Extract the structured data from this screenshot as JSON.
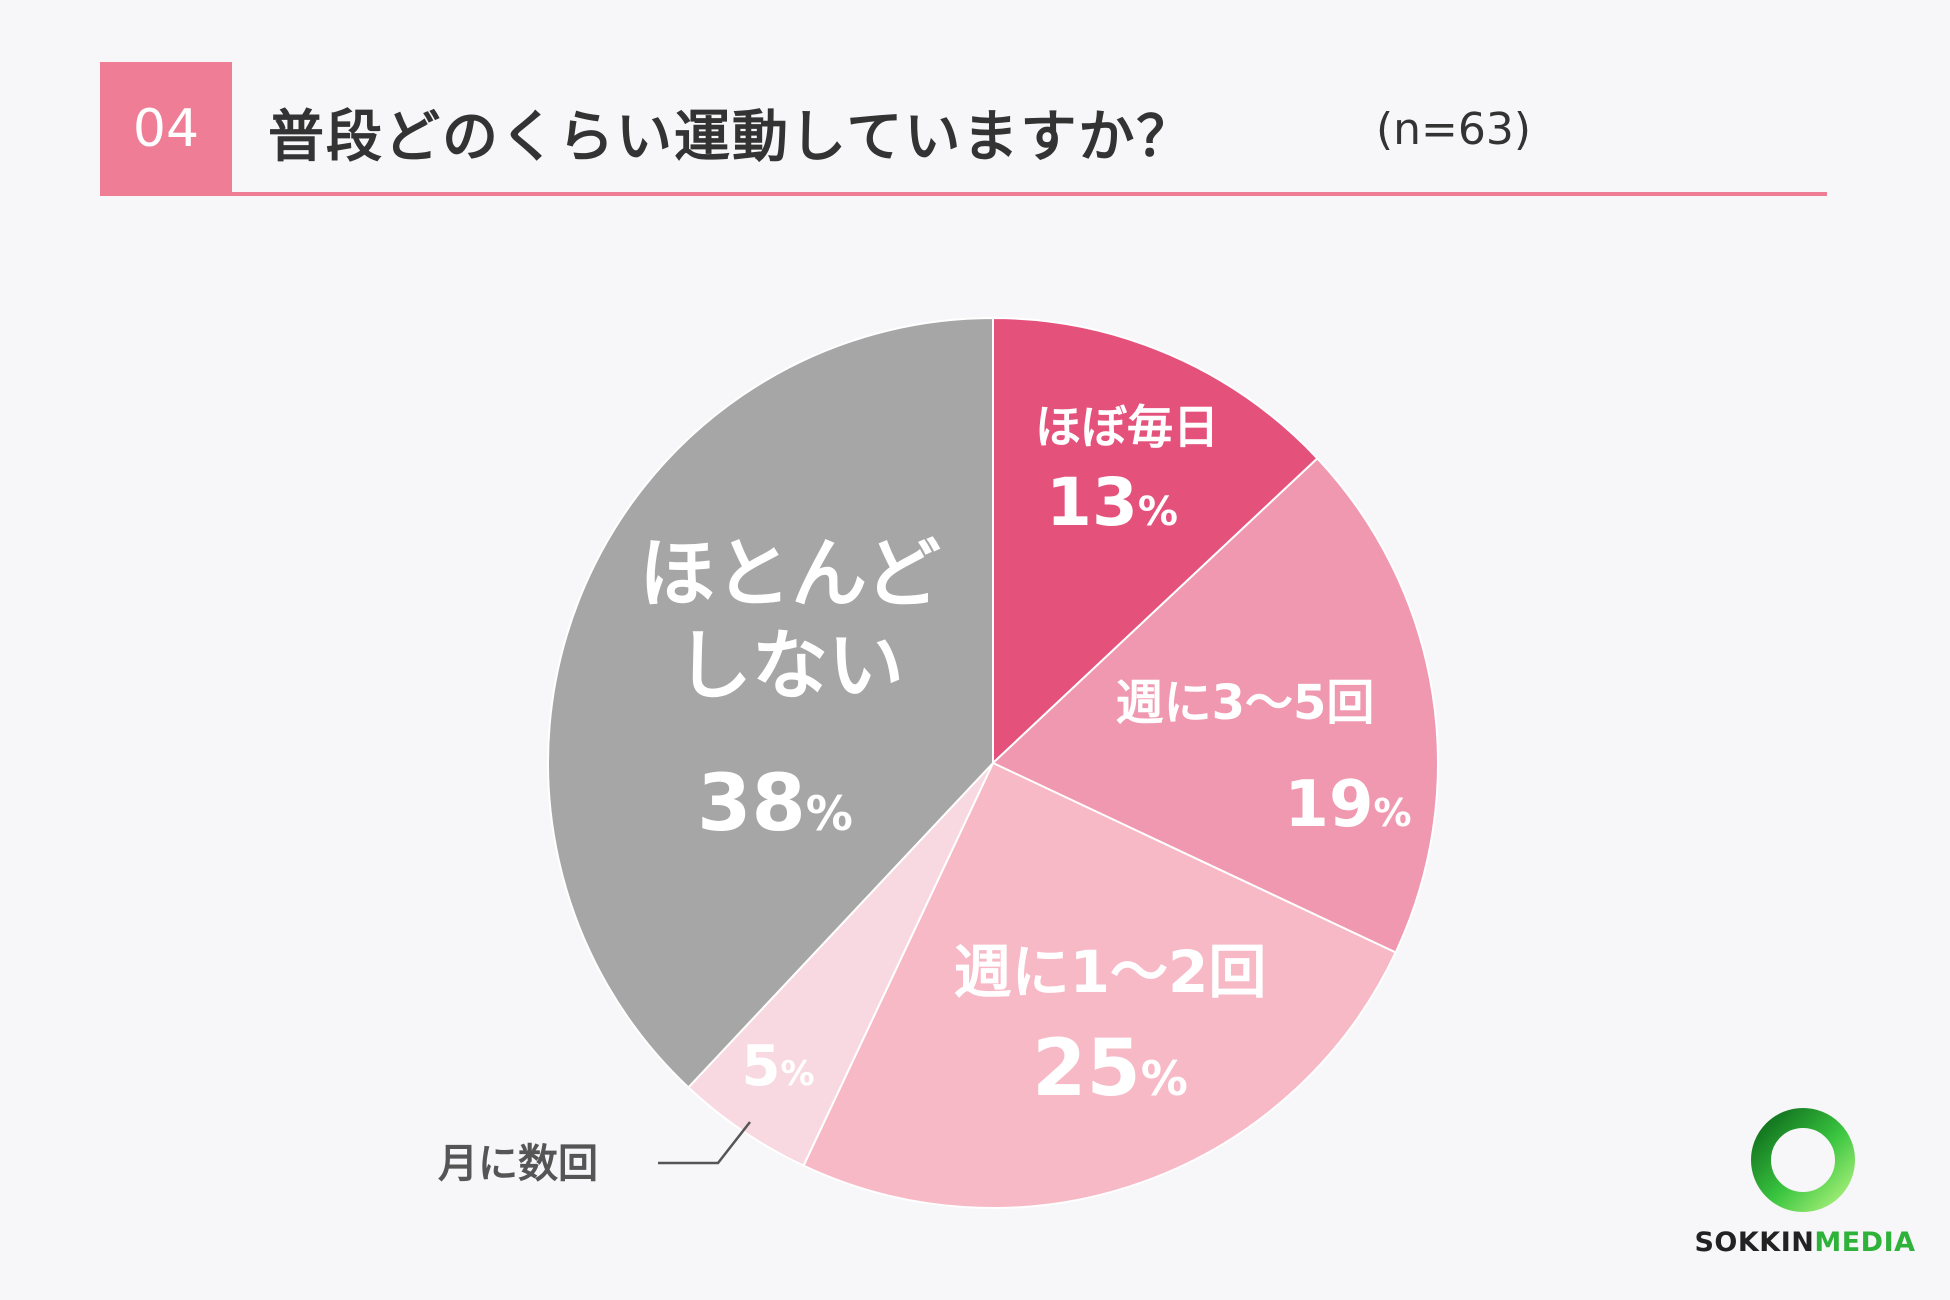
{
  "header": {
    "number": "04",
    "title": "普段どのくらい運動していますか？",
    "sample": "(n=63)"
  },
  "chart_data": {
    "type": "pie",
    "start_angle_deg": 0,
    "direction": "clockwise",
    "slices": [
      {
        "label_lines": [
          "ほぼ毎日"
        ],
        "value": 13,
        "pct_text": "13",
        "color": "#e4527c",
        "text_color": "#ffffff"
      },
      {
        "label_lines": [
          "週に3〜5回"
        ],
        "value": 19,
        "pct_text": "19",
        "color": "#ef98b0",
        "text_color": "#ffffff"
      },
      {
        "label_lines": [
          "週に1〜2回"
        ],
        "value": 25,
        "pct_text": "25",
        "color": "#f7b9c6",
        "text_color": "#ffffff"
      },
      {
        "label_lines": [
          "月に数回"
        ],
        "value": 5,
        "pct_text": "5",
        "color": "#f9d9e1",
        "text_color": "#ffffff",
        "label_outside": true,
        "outside_label_color": "#555555"
      },
      {
        "label_lines": [
          "ほとんど",
          "しない"
        ],
        "value": 38,
        "pct_text": "38",
        "color": "#a6a6a6",
        "text_color": "#ffffff"
      }
    ],
    "percent_sign": "%"
  },
  "brand": {
    "part1": "SOKKIN",
    "part2": "MEDIA",
    "ring_colors": [
      "#0e6b1c",
      "#39c43f",
      "#a8f07a"
    ]
  }
}
